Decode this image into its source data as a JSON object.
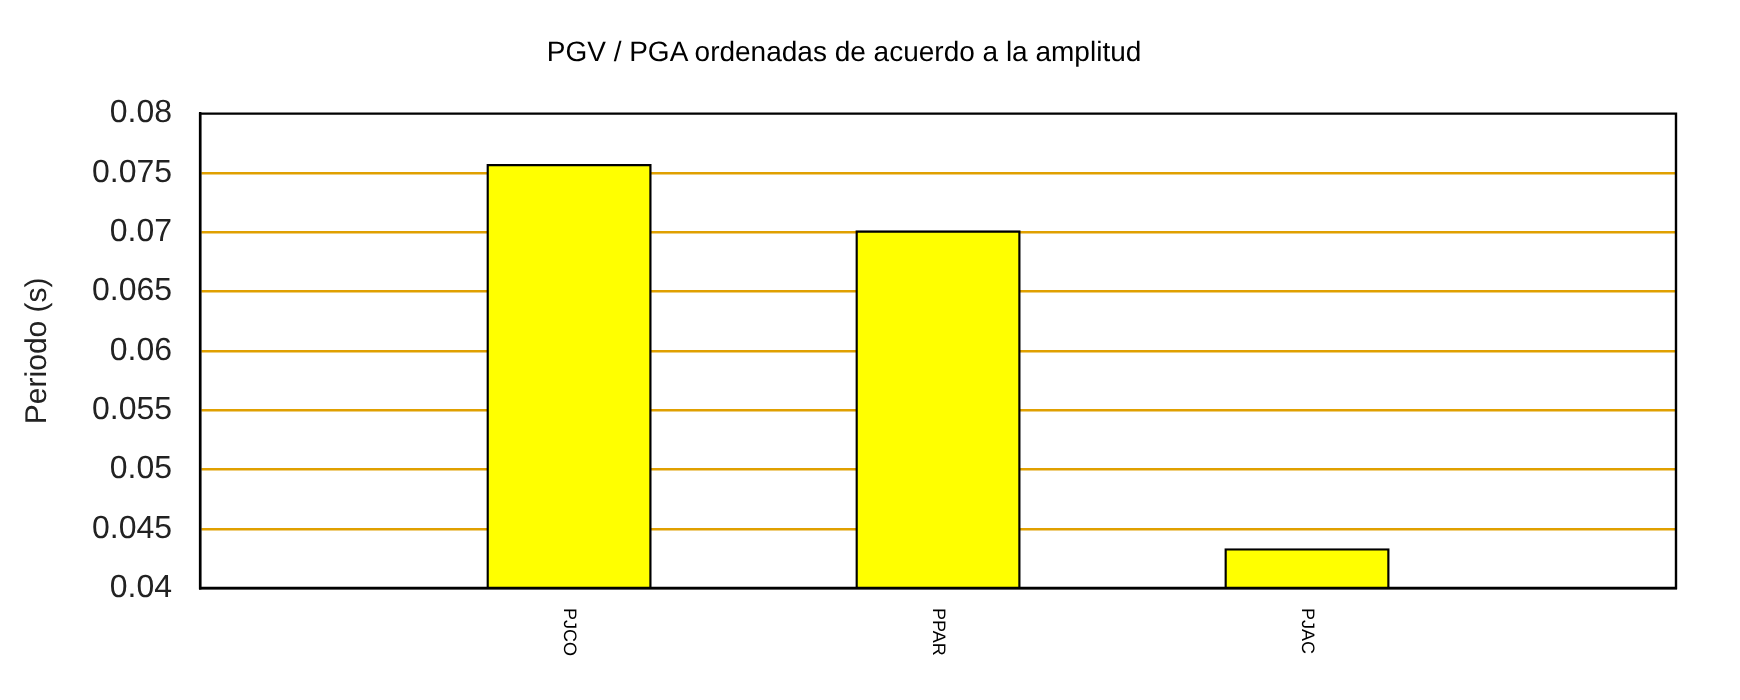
{
  "chart_data": {
    "type": "bar",
    "title": "PGV / PGA ordenadas de acuerdo a la amplitud",
    "ylabel": "Periodo (s)",
    "categories": [
      "PJCO",
      "PPAR",
      "PJAC"
    ],
    "values": [
      0.0757,
      0.0701,
      0.0433
    ],
    "color": "#ffff00",
    "ylim": [
      0.04,
      0.08
    ],
    "yticks": [
      0.04,
      0.045,
      0.05,
      0.055,
      0.06,
      0.065,
      0.07,
      0.075,
      0.08
    ],
    "grid": "y"
  }
}
